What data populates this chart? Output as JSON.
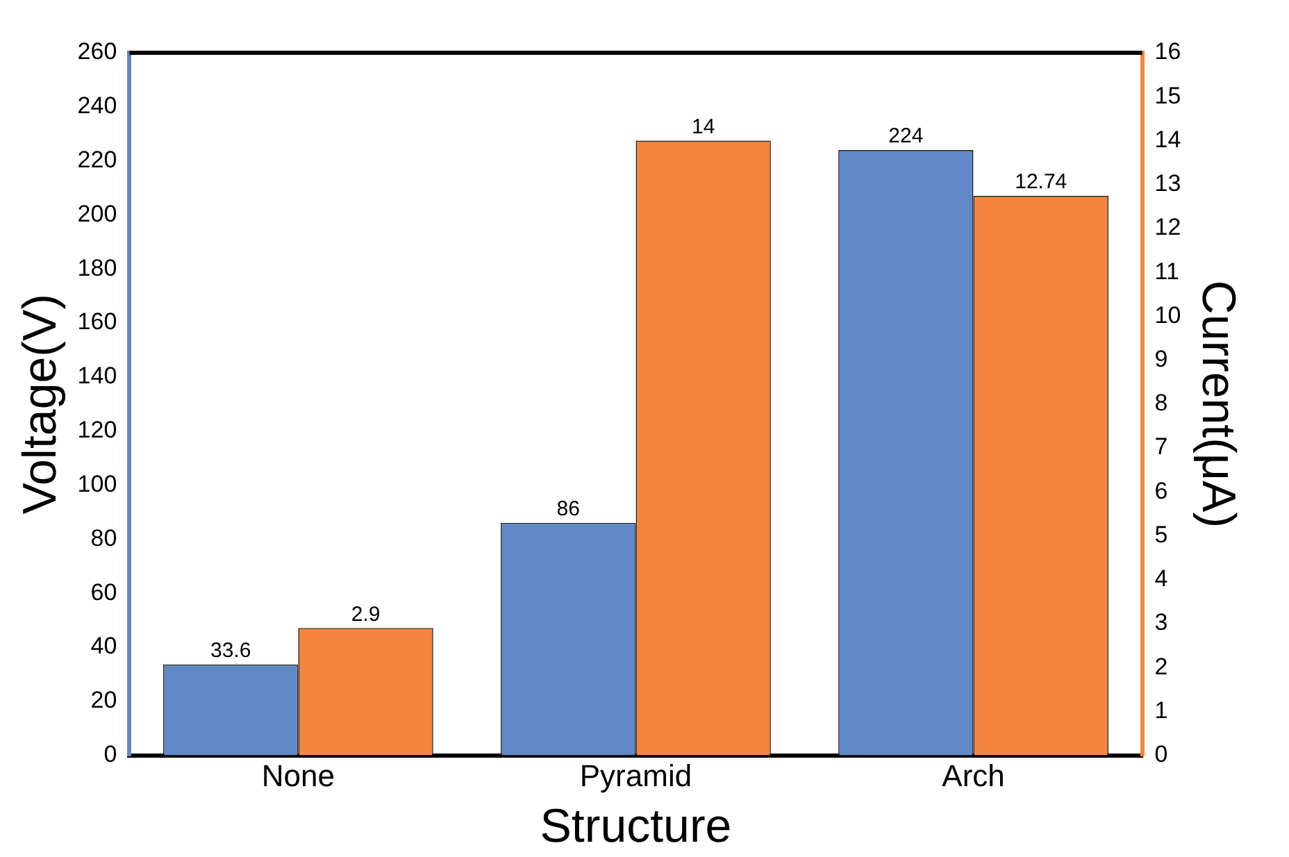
{
  "chart_data": {
    "type": "bar",
    "xlabel": "Structure",
    "ylabel": "Voltage(V)",
    "y2label": "Current(μA)",
    "categories": [
      "None",
      "Pyramid",
      "Arch"
    ],
    "series": [
      {
        "color": "#6088c6",
        "values": [
          33.6,
          86,
          224
        ]
      },
      {
        "color": "#f5843c",
        "values": [
          2.9,
          14,
          12.74
        ],
        "axis": "y2"
      }
    ],
    "ylim": [
      0,
      260
    ],
    "yticks": [
      0,
      20,
      40,
      60,
      80,
      100,
      120,
      140,
      160,
      180,
      200,
      220,
      240,
      260
    ],
    "y2lim": [
      0,
      16
    ],
    "y2ticks": [
      0,
      1,
      2,
      3,
      4,
      5,
      6,
      7,
      8,
      9,
      10,
      11,
      12,
      13,
      14,
      15,
      16
    ],
    "data_labels": true,
    "grid": false,
    "legend": false
  }
}
